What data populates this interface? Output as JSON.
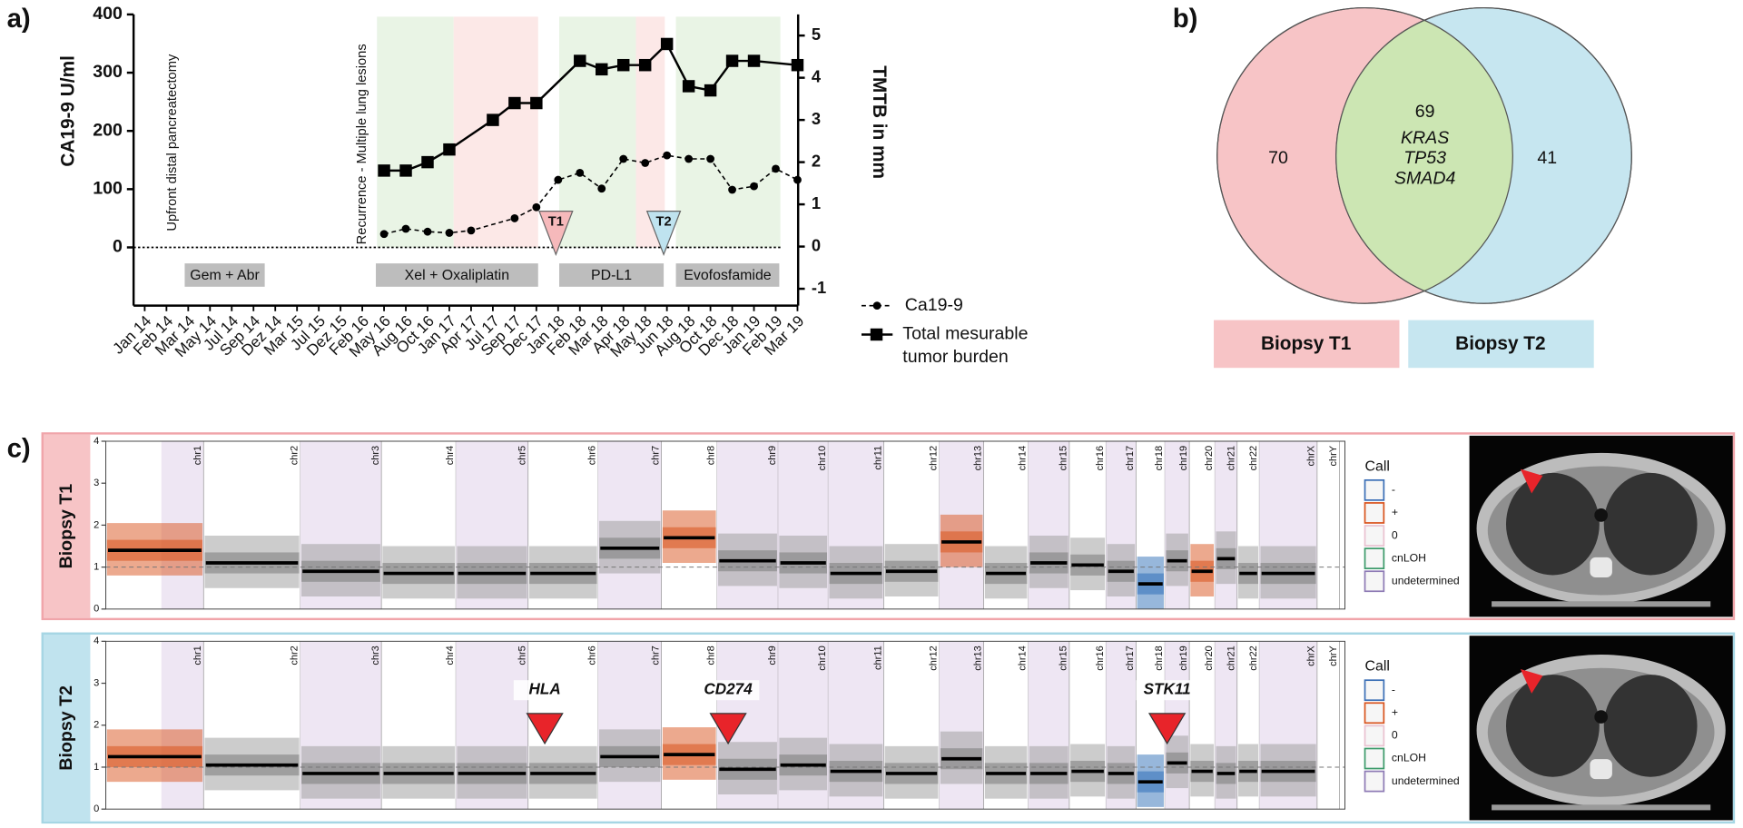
{
  "panels": {
    "a": "a)",
    "b": "b)",
    "c": "c)"
  },
  "chart_data": {
    "type": "line",
    "y_label": "CA19-9 U/ml",
    "y2_label": "TMTB in mm",
    "categories": [
      "Jan 14",
      "Feb 14",
      "Mar 14",
      "May 14",
      "Jul 14",
      "Sep 14",
      "Dez 14",
      "Mar 15",
      "Jul 15",
      "Dez 15",
      "Feb 16",
      "May 16",
      "Aug 16",
      "Oct 16",
      "Jan 17",
      "Apr 17",
      "Jul 17",
      "Sep 17",
      "Dec 17",
      "Jan 18",
      "Feb 18",
      "Mar 18",
      "Apr 18",
      "May 18",
      "Jun 18",
      "Aug 18",
      "Oct 18",
      "Dec 18",
      "Jan 19",
      "Feb 19",
      "Mar 19"
    ],
    "ylim": [
      -100,
      400
    ],
    "yticks": [
      0,
      100,
      200,
      300,
      400
    ],
    "y2lim": [
      -1.4,
      5.5
    ],
    "y2ticks": [
      -1,
      0,
      1,
      2,
      3,
      4,
      5
    ],
    "series": [
      {
        "name": "Ca19-9",
        "color": "#000000",
        "style": "dashed",
        "marker": "circle",
        "x": [
          "May 16",
          "Aug 16",
          "Oct 16",
          "Jan 17",
          "Apr 17",
          "Sep 17",
          "Dec 17",
          "Jan 18",
          "Feb 18",
          "Mar 18",
          "Apr 18",
          "May 18",
          "Jun 18",
          "Aug 18",
          "Oct 18",
          "Dec 18",
          "Jan 19",
          "Feb 19",
          "Mar 19"
        ],
        "values": [
          23,
          32,
          27,
          25,
          29,
          50,
          69,
          116,
          128,
          101,
          152,
          145,
          158,
          152,
          152,
          99,
          105,
          135,
          116
        ]
      },
      {
        "name": "Total mesurable tumor burden",
        "color": "#000000",
        "style": "solid",
        "marker": "square",
        "axis": "y2",
        "x": [
          "May 16",
          "Aug 16",
          "Oct 16",
          "Jan 17",
          "Jul 17",
          "Sep 17",
          "Dec 17",
          "Feb 18",
          "Mar 18",
          "Apr 18",
          "May 18",
          "Jun 18",
          "Aug 18",
          "Oct 18",
          "Dec 18",
          "Jan 19",
          "Mar 19"
        ],
        "values": [
          1.8,
          1.8,
          2.0,
          2.3,
          3.0,
          3.4,
          3.4,
          4.4,
          4.2,
          4.3,
          4.3,
          4.8,
          3.8,
          3.7,
          4.4,
          4.4,
          4.3
        ]
      }
    ],
    "annotations": {
      "surgery": "Upfront distal pancreatectomy",
      "recurrence": "Recurrence - Multiple lung lesions",
      "biopsies": [
        "T1",
        "T2"
      ],
      "treatments": [
        "Gem + Abr",
        "Xel + Oxaliplatin",
        "PD-L1",
        "Evofosfamide"
      ]
    }
  },
  "venn": {
    "only_t1": 70,
    "shared": 69,
    "shared_genes": [
      "KRAS",
      "TP53",
      "SMAD4"
    ],
    "only_t2": 41,
    "labels": [
      "Biopsy T1",
      "Biopsy T2"
    ]
  },
  "copy_number": {
    "call_title": "Call",
    "call_labels": [
      "-",
      "+",
      "0",
      "cnLOH",
      "undetermined"
    ],
    "ylim": [
      0,
      4
    ],
    "yticks": [
      0,
      1,
      2,
      3,
      4
    ],
    "chromosomes": [
      "chr1",
      "chr2",
      "chr3",
      "chr4",
      "chr5",
      "chr6",
      "chr7",
      "chr8",
      "chr9",
      "chr10",
      "chr11",
      "chr12",
      "chr13",
      "chr14",
      "chr15",
      "chr16",
      "chr17",
      "chr18",
      "chr19",
      "chr20",
      "chr21",
      "chr22",
      "chrX",
      "chrY"
    ],
    "biopsies": [
      {
        "name": "Biopsy T1",
        "segments": [
          1.4,
          1.1,
          0.9,
          0.85,
          0.85,
          0.85,
          1.45,
          1.7,
          1.15,
          1.1,
          0.85,
          0.9,
          1.6,
          0.85,
          1.1,
          1.05,
          0.9,
          0.6,
          1.15,
          0.9,
          1.2,
          0.85,
          0.85,
          null
        ],
        "calls": [
          "+",
          "0",
          "0",
          "0",
          "0",
          "0",
          "0",
          "+",
          "0",
          "0",
          "0",
          "0",
          "+",
          "0",
          "0",
          "0",
          "0",
          "-",
          "0",
          "+",
          "0",
          "0",
          "0",
          "0"
        ],
        "genes": []
      },
      {
        "name": "Biopsy T2",
        "segments": [
          1.25,
          1.05,
          0.85,
          0.85,
          0.85,
          0.85,
          1.25,
          1.3,
          0.95,
          1.05,
          0.9,
          0.85,
          1.2,
          0.85,
          0.85,
          0.9,
          0.85,
          0.65,
          1.1,
          0.9,
          0.85,
          0.9,
          0.9,
          null
        ],
        "calls": [
          "+",
          "0",
          "0",
          "0",
          "0",
          "0",
          "0",
          "+",
          "0",
          "0",
          "0",
          "0",
          "0",
          "0",
          "0",
          "0",
          "0",
          "-",
          "0",
          "0",
          "0",
          "0",
          "0",
          "0"
        ],
        "genes": [
          "HLA",
          "CD274",
          "STK11"
        ]
      }
    ]
  }
}
